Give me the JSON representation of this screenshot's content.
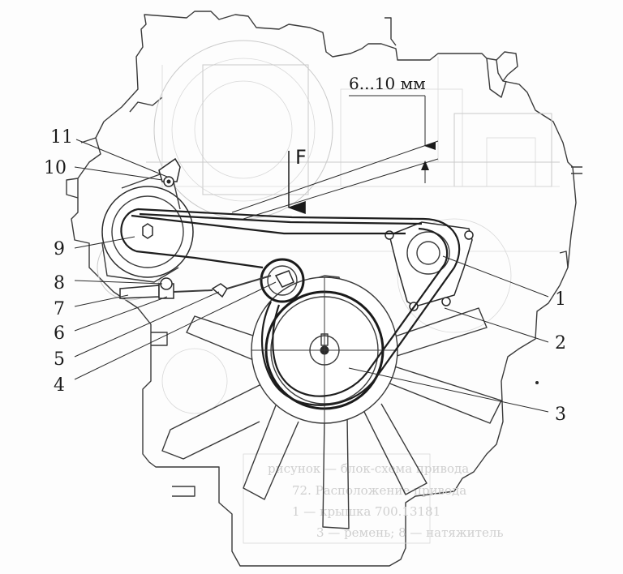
{
  "diagram": {
    "dimension_label": "6...10 мм",
    "force_label": "F",
    "callouts": [
      "1",
      "2",
      "3",
      "4",
      "5",
      "6",
      "7",
      "8",
      "9",
      "10",
      "11"
    ]
  }
}
